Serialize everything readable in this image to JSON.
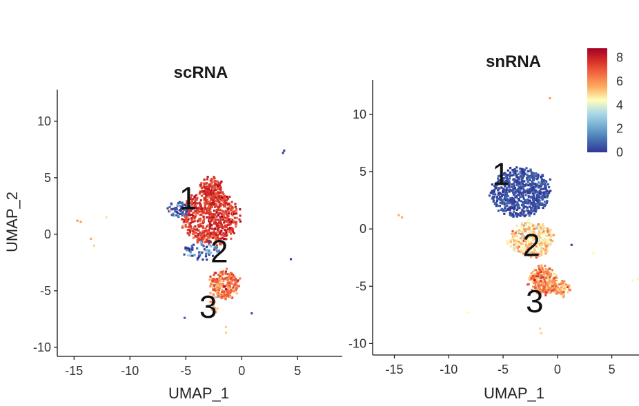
{
  "chart_data": [
    {
      "type": "scatter",
      "title": "scRNA",
      "xlabel": "UMAP_1",
      "ylabel": "UMAP_2",
      "xlim": [
        -16.5,
        9
      ],
      "ylim": [
        -10.8,
        12.8
      ],
      "xticks": [
        -15,
        -10,
        -5,
        0,
        5
      ],
      "yticks": [
        -10,
        -5,
        0,
        5,
        10
      ],
      "xtick_labels": [
        "-15",
        "-10",
        "-5",
        "0",
        "5"
      ],
      "ytick_labels": [
        "-10",
        "-5",
        "0",
        "5",
        "10"
      ],
      "cluster_labels": [
        {
          "text": "1",
          "x": -4.8,
          "y": 3.2
        },
        {
          "text": "2",
          "x": -2.0,
          "y": -1.5
        },
        {
          "text": "3",
          "x": -3.0,
          "y": -6.4
        }
      ],
      "clusters": [
        {
          "cx": -2.9,
          "cy": 1.6,
          "rx": 2.5,
          "ry": 2.4,
          "n": 650,
          "value": 7.6,
          "spread": 0.6
        },
        {
          "cx": -2.8,
          "cy": 4.1,
          "rx": 1.0,
          "ry": 1.1,
          "n": 120,
          "value": 7.6,
          "spread": 0.6
        },
        {
          "cx": -5.7,
          "cy": 2.3,
          "rx": 0.9,
          "ry": 0.6,
          "n": 55,
          "value": 0.6,
          "spread": 0.6
        },
        {
          "cx": -3.6,
          "cy": -1.4,
          "rx": 1.6,
          "ry": 0.8,
          "n": 60,
          "value": 1.2,
          "spread": 1.2
        },
        {
          "cx": -1.6,
          "cy": -4.4,
          "rx": 1.3,
          "ry": 1.2,
          "n": 230,
          "value": 6.5,
          "spread": 0.8
        },
        {
          "cx": -2.6,
          "cy": -6.0,
          "rx": 0.5,
          "ry": 0.9,
          "n": 20,
          "value": 5.2,
          "spread": 1.0
        }
      ],
      "outliers": [
        {
          "x": 3.6,
          "y": 7.3,
          "value": 0.3
        },
        {
          "x": 3.7,
          "y": 7.5,
          "value": 0.3
        },
        {
          "x": 4.3,
          "y": -2.1,
          "value": 0.3
        },
        {
          "x": -14.8,
          "y": 1.3,
          "value": 5.8
        },
        {
          "x": -14.5,
          "y": 1.2,
          "value": 5.8
        },
        {
          "x": -13.6,
          "y": -0.3,
          "value": 5.5
        },
        {
          "x": -13.3,
          "y": -0.9,
          "value": 5.0
        },
        {
          "x": -12.2,
          "y": 1.6,
          "value": 4.8
        },
        {
          "x": -1.5,
          "y": -8.1,
          "value": 5.0
        },
        {
          "x": -1.5,
          "y": -8.6,
          "value": 5.0
        },
        {
          "x": 0.8,
          "y": -6.9,
          "value": 0.5
        },
        {
          "x": -5.2,
          "y": -7.3,
          "value": 0.8
        },
        {
          "x": -6.5,
          "y": 2.2,
          "value": 5.5
        }
      ]
    },
    {
      "type": "scatter",
      "title": "snRNA",
      "xlabel": "UMAP_1",
      "ylabel": "",
      "xlim": [
        -17,
        7.5
      ],
      "ylim": [
        -11,
        13
      ],
      "xticks": [
        -15,
        -10,
        -5,
        0,
        5
      ],
      "yticks": [
        -10,
        -5,
        0,
        5,
        10
      ],
      "xtick_labels": [
        "-15",
        "-10",
        "-5",
        "0",
        "5"
      ],
      "ytick_labels": [
        "-10",
        "-5",
        "0",
        "5",
        "10"
      ],
      "cluster_labels": [
        {
          "text": "1",
          "x": -5.2,
          "y": 4.8
        },
        {
          "text": "2",
          "x": -2.4,
          "y": -1.4
        },
        {
          "text": "3",
          "x": -2.1,
          "y": -6.3
        }
      ],
      "clusters": [
        {
          "cx": -3.5,
          "cy": 3.3,
          "rx": 2.7,
          "ry": 2.1,
          "n": 700,
          "value": 0.4,
          "spread": 0.4
        },
        {
          "cx": -2.5,
          "cy": -0.8,
          "rx": 2.0,
          "ry": 1.5,
          "n": 320,
          "value": 5.0,
          "spread": 0.8
        },
        {
          "cx": -1.4,
          "cy": -4.4,
          "rx": 1.2,
          "ry": 1.2,
          "n": 250,
          "value": 6.0,
          "spread": 0.8
        },
        {
          "cx": 0.2,
          "cy": -5.1,
          "rx": 0.8,
          "ry": 0.6,
          "n": 70,
          "value": 5.8,
          "spread": 0.8
        }
      ],
      "outliers": [
        {
          "x": -0.8,
          "y": 11.5,
          "value": 5.8
        },
        {
          "x": -14.7,
          "y": 1.3,
          "value": 5.5
        },
        {
          "x": -14.4,
          "y": 1.1,
          "value": 5.5
        },
        {
          "x": 1.2,
          "y": -1.3,
          "value": 0.3
        },
        {
          "x": 3.2,
          "y": -2.0,
          "value": 4.5
        },
        {
          "x": -8.3,
          "y": -7.2,
          "value": 4.5
        },
        {
          "x": -1.7,
          "y": -8.6,
          "value": 5.0
        },
        {
          "x": -1.6,
          "y": -9.0,
          "value": 5.0
        },
        {
          "x": 6.8,
          "y": -4.4,
          "value": 4.2
        },
        {
          "x": 7.3,
          "y": -4.3,
          "value": 4.2
        }
      ]
    }
  ],
  "legend": {
    "colors": [
      "#313695",
      "#4575b4",
      "#74add1",
      "#abd9e9",
      "#fffebe",
      "#fdae61",
      "#f46d43",
      "#d73027",
      "#a50026"
    ],
    "domain": [
      0,
      8.8
    ],
    "ticks": [
      8,
      6,
      4,
      2,
      0
    ],
    "tick_labels": [
      "8",
      "6",
      "4",
      "2",
      "0"
    ],
    "placement": "top-right"
  }
}
